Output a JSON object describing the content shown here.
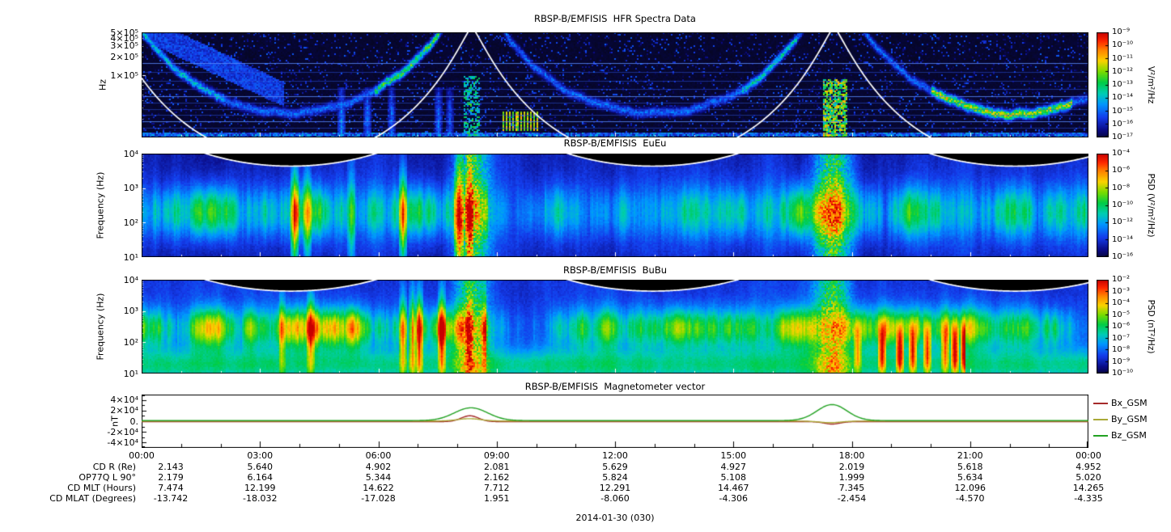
{
  "figure": {
    "date_label": "2014-01-30 (030)"
  },
  "time_axis": {
    "tick_labels": [
      "00:00",
      "03:00",
      "06:00",
      "09:00",
      "12:00",
      "15:00",
      "18:00",
      "21:00",
      "00:00"
    ],
    "tick_hours": [
      0,
      3,
      6,
      9,
      12,
      15,
      18,
      21,
      24
    ]
  },
  "chart_data": [
    {
      "type": "heatmap",
      "title": "RBSP-B/EMFISIS  HFR Spectra Data",
      "ylabel": "Hz",
      "yscale": "log",
      "ylim_hz": [
        10000,
        500000
      ],
      "x_range_hours": [
        0,
        24
      ],
      "ytick_values": [
        500000,
        400000,
        300000,
        200000,
        100000
      ],
      "ytick_labels": [
        "5×10⁵",
        "4×10⁵",
        "3×10⁵",
        "2×10⁵",
        "1×10⁵"
      ],
      "colorbar": {
        "unit": "V²/m²/Hz",
        "tick_labels": [
          "10⁻⁹",
          "10⁻¹⁰",
          "10⁻¹¹",
          "10⁻¹²",
          "10⁻¹³",
          "10⁻¹⁴",
          "10⁻¹⁵",
          "10⁻¹⁶",
          "10⁻¹⁷"
        ]
      }
    },
    {
      "type": "heatmap",
      "title": "RBSP-B/EMFISIS  EuEu",
      "ylabel": "Frequency (Hz)",
      "yscale": "log",
      "ylim_hz": [
        10,
        10000
      ],
      "x_range_hours": [
        0,
        24
      ],
      "ytick_values": [
        10000,
        1000,
        100,
        10
      ],
      "ytick_labels": [
        "10⁴",
        "10³",
        "10²",
        "10¹"
      ],
      "colorbar": {
        "unit": "PSD (V²/m²/Hz)",
        "tick_labels": [
          "10⁻⁴",
          "10⁻⁶",
          "10⁻⁸",
          "10⁻¹⁰",
          "10⁻¹²",
          "10⁻¹⁴",
          "10⁻¹⁶"
        ]
      }
    },
    {
      "type": "heatmap",
      "title": "RBSP-B/EMFISIS  BuBu",
      "ylabel": "Frequency (Hz)",
      "yscale": "log",
      "ylim_hz": [
        10,
        10000
      ],
      "x_range_hours": [
        0,
        24
      ],
      "ytick_values": [
        10000,
        1000,
        100,
        10
      ],
      "ytick_labels": [
        "10⁴",
        "10³",
        "10²",
        "10¹"
      ],
      "colorbar": {
        "unit": "PSD (nT²/Hz)",
        "tick_labels": [
          "10⁻²",
          "10⁻³",
          "10⁻⁴",
          "10⁻⁵",
          "10⁻⁶",
          "10⁻⁷",
          "10⁻⁸",
          "10⁻⁹",
          "10⁻¹⁰"
        ]
      }
    },
    {
      "type": "line",
      "title": "RBSP-B/EMFISIS  Magnetometer vector",
      "ylabel": "nT",
      "ylim": [
        -50000,
        50000
      ],
      "x_range_hours": [
        0,
        24
      ],
      "ytick_values": [
        40000,
        20000,
        0,
        -20000,
        -40000
      ],
      "ytick_labels": [
        "4×10⁴",
        "2×10⁴",
        "0.",
        "-2×10⁴",
        "-4×10⁴"
      ],
      "legend_position": "right",
      "series": [
        {
          "name": "Bx_GSM",
          "color": "#a52a2a",
          "baseline": -800,
          "peaks": [
            {
              "t": 8.32,
              "amp": 11000,
              "w": 0.22
            },
            {
              "t": 17.5,
              "amp": -4500,
              "w": 0.2
            }
          ]
        },
        {
          "name": "By_GSM",
          "color": "#a9a937",
          "baseline": 300,
          "peaks": [
            {
              "t": 8.3,
              "amp": 4500,
              "w": 0.3
            },
            {
              "t": 17.45,
              "amp": -3000,
              "w": 0.28
            }
          ]
        },
        {
          "name": "Bz_GSM",
          "color": "#22a222",
          "baseline": 1200,
          "peaks": [
            {
              "t": 8.35,
              "amp": 24000,
              "w": 0.42
            },
            {
              "t": 17.5,
              "amp": 30000,
              "w": 0.38
            }
          ]
        }
      ]
    }
  ],
  "orbit_model": {
    "perigee_hour": 8.37,
    "period_hours": 9.18,
    "r_perigee": 1.12,
    "r_apogee": 5.85,
    "shape_exponent": 0.6,
    "fce_hz_coeff": 868000,
    "fuh_hz_coeff": 5000000
  },
  "ephemeris": {
    "row_labels": [
      "CD R (Re)",
      "OP77Q L 90°",
      "CD MLT (Hours)",
      "CD MLAT (Degrees)"
    ],
    "rows": [
      [
        "2.143",
        "5.640",
        "4.902",
        "2.081",
        "5.629",
        "4.927",
        "2.019",
        "5.618",
        "4.952"
      ],
      [
        "2.179",
        "6.164",
        "5.344",
        "2.162",
        "5.824",
        "5.108",
        "1.999",
        "5.634",
        "5.020"
      ],
      [
        "7.474",
        "12.199",
        "14.622",
        "7.712",
        "12.291",
        "14.467",
        "7.345",
        "12.096",
        "14.265"
      ],
      [
        "-13.742",
        "-18.032",
        "-17.028",
        "1.951",
        "-8.060",
        "-4.306",
        "-2.454",
        "-4.570",
        "-4.335"
      ]
    ]
  }
}
